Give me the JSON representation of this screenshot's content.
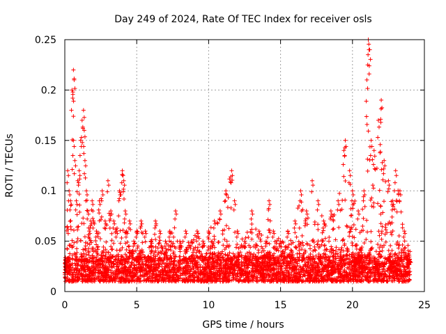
{
  "chart_data": {
    "type": "scatter",
    "title": "Day 249 of 2024, Rate Of TEC Index for receiver osls",
    "xlabel": "GPS time / hours",
    "ylabel": "ROTI / TECUs",
    "xlim": [
      0,
      25
    ],
    "ylim": [
      0,
      0.25
    ],
    "xticks": [
      0,
      5,
      10,
      15,
      20,
      25
    ],
    "yticks": [
      0,
      0.05,
      0.1,
      0.15,
      0.2,
      0.25
    ],
    "xtick_labels": [
      "0",
      "5",
      "10",
      "15",
      "20",
      "25"
    ],
    "ytick_labels": [
      "0",
      "0.05",
      "0.1",
      "0.15",
      "0.2",
      "0.25"
    ],
    "grid": true,
    "marker": "+",
    "color": "#ff0000",
    "series": [
      {
        "name": "ROTI",
        "x": [
          0.1,
          0.2,
          0.3,
          0.4,
          0.5,
          0.6,
          0.6,
          0.65,
          0.7,
          0.8,
          0.9,
          1.0,
          1.1,
          1.2,
          1.3,
          1.35,
          1.4,
          1.5,
          1.6,
          1.7,
          1.8,
          1.9,
          2.0,
          2.2,
          2.4,
          2.6,
          2.8,
          3.0,
          3.2,
          3.4,
          3.6,
          3.8,
          4.0,
          4.1,
          4.2,
          4.3,
          4.5,
          4.8,
          5.0,
          5.3,
          5.6,
          6.0,
          6.3,
          6.6,
          7.0,
          7.3,
          7.7,
          8.0,
          8.4,
          8.8,
          9.2,
          9.6,
          10.0,
          10.4,
          10.8,
          11.2,
          11.6,
          11.8,
          12.0,
          12.5,
          13.0,
          13.5,
          14.0,
          14.2,
          14.5,
          15.0,
          15.5,
          16.0,
          16.4,
          16.8,
          17.2,
          17.6,
          18.0,
          18.5,
          19.0,
          19.4,
          19.5,
          19.8,
          20.0,
          20.4,
          20.8,
          21.0,
          21.1,
          21.2,
          21.3,
          21.5,
          21.8,
          22.0,
          22.2,
          22.5,
          22.8,
          23.0,
          23.3,
          23.6,
          24.0
        ],
        "y": [
          0.03,
          0.12,
          0.1,
          0.09,
          0.2,
          0.22,
          0.15,
          0.21,
          0.13,
          0.09,
          0.11,
          0.12,
          0.15,
          0.17,
          0.18,
          0.16,
          0.13,
          0.1,
          0.08,
          0.06,
          0.07,
          0.09,
          0.07,
          0.06,
          0.09,
          0.1,
          0.07,
          0.11,
          0.08,
          0.07,
          0.06,
          0.1,
          0.12,
          0.11,
          0.08,
          0.06,
          0.07,
          0.05,
          0.06,
          0.07,
          0.06,
          0.05,
          0.07,
          0.06,
          0.05,
          0.06,
          0.08,
          0.05,
          0.06,
          0.05,
          0.06,
          0.05,
          0.06,
          0.07,
          0.08,
          0.1,
          0.12,
          0.09,
          0.06,
          0.05,
          0.08,
          0.06,
          0.05,
          0.09,
          0.06,
          0.05,
          0.06,
          0.07,
          0.1,
          0.08,
          0.11,
          0.09,
          0.07,
          0.08,
          0.09,
          0.14,
          0.15,
          0.12,
          0.1,
          0.08,
          0.1,
          0.21,
          0.25,
          0.24,
          0.15,
          0.14,
          0.17,
          0.19,
          0.13,
          0.11,
          0.09,
          0.12,
          0.1,
          0.06,
          0.03
        ]
      }
    ],
    "baseline_band": {
      "low": 0.01,
      "high": 0.035
    }
  }
}
